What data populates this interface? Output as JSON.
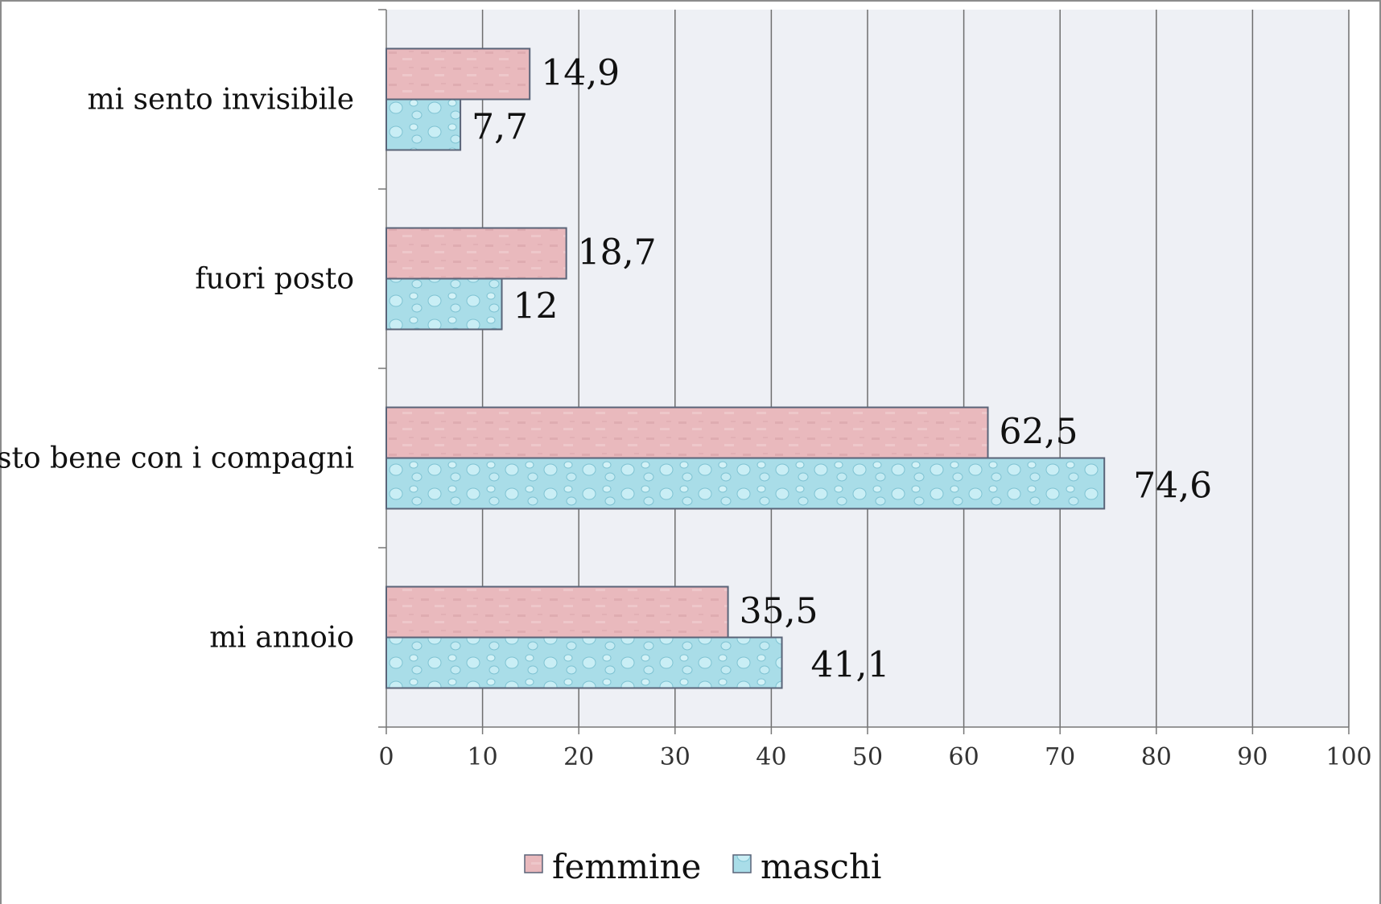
{
  "chart_data": {
    "type": "bar",
    "orientation": "horizontal",
    "categories": [
      "mi sento invisibile",
      "fuori posto",
      "sto bene con i compagni",
      "mi annoio"
    ],
    "series": [
      {
        "name": "femmine",
        "values": [
          14.9,
          18.7,
          62.5,
          35.5
        ],
        "labels": [
          "14,9",
          "18,7",
          "62,5",
          "35,5"
        ],
        "color": "#e8b4b8"
      },
      {
        "name": "maschi",
        "values": [
          7.7,
          12,
          74.6,
          41.1
        ],
        "labels": [
          "7,7",
          "12",
          "74,6",
          "41,1"
        ],
        "color": "#a8dce6"
      }
    ],
    "xlim": [
      0,
      100
    ],
    "xticks": [
      "0",
      "10",
      "20",
      "30",
      "40",
      "50",
      "60",
      "70",
      "80",
      "90",
      "100"
    ],
    "grid": true,
    "legend_position": "bottom"
  },
  "colors": {
    "plot_background": "#eef0f5",
    "gridline": "#6e6e6e",
    "bar_border": "#5a6478"
  }
}
